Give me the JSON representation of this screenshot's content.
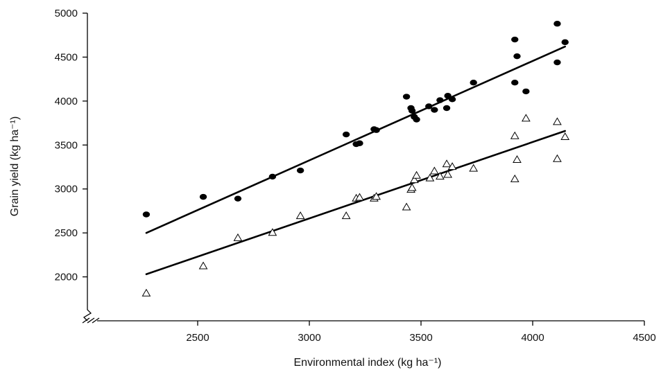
{
  "chart_data": {
    "type": "scatter",
    "xlabel": "Environmental index (kg ha⁻¹)",
    "ylabel": "Grain yield (kg ha⁻¹)",
    "xlim": [
      2000,
      4500
    ],
    "ylim": [
      1500,
      5000
    ],
    "x_ticks": [
      2500,
      3000,
      3500,
      4000,
      4500
    ],
    "y_ticks": [
      2000,
      2500,
      3000,
      3500,
      4000,
      4500,
      5000
    ],
    "axis_break": true,
    "grid": false,
    "series": [
      {
        "marker": "filled-circle",
        "color": "#000000",
        "points": [
          [
            2270,
            2710
          ],
          [
            2525,
            2910
          ],
          [
            2680,
            2890
          ],
          [
            2835,
            3140
          ],
          [
            2960,
            3210
          ],
          [
            3165,
            3620
          ],
          [
            3210,
            3510
          ],
          [
            3225,
            3520
          ],
          [
            3290,
            3680
          ],
          [
            3300,
            3670
          ],
          [
            3435,
            4050
          ],
          [
            3455,
            3920
          ],
          [
            3460,
            3890
          ],
          [
            3470,
            3820
          ],
          [
            3480,
            3790
          ],
          [
            3535,
            3940
          ],
          [
            3560,
            3900
          ],
          [
            3585,
            4010
          ],
          [
            3615,
            3920
          ],
          [
            3620,
            4060
          ],
          [
            3640,
            4020
          ],
          [
            3735,
            4210
          ],
          [
            3920,
            4700
          ],
          [
            3920,
            4210
          ],
          [
            3930,
            4510
          ],
          [
            3970,
            4110
          ],
          [
            4110,
            4880
          ],
          [
            4110,
            4440
          ],
          [
            4145,
            4670
          ]
        ],
        "fit": {
          "x": [
            2270,
            4145
          ],
          "y": [
            2500,
            4620
          ]
        }
      },
      {
        "marker": "open-triangle",
        "color": "#000000",
        "points": [
          [
            2270,
            1810
          ],
          [
            2525,
            2120
          ],
          [
            2680,
            2440
          ],
          [
            2835,
            2500
          ],
          [
            2960,
            2690
          ],
          [
            3165,
            2690
          ],
          [
            3210,
            2890
          ],
          [
            3225,
            2900
          ],
          [
            3290,
            2890
          ],
          [
            3300,
            2910
          ],
          [
            3435,
            2790
          ],
          [
            3455,
            2990
          ],
          [
            3460,
            3010
          ],
          [
            3470,
            3100
          ],
          [
            3480,
            3150
          ],
          [
            3540,
            3120
          ],
          [
            3560,
            3200
          ],
          [
            3585,
            3140
          ],
          [
            3615,
            3280
          ],
          [
            3620,
            3160
          ],
          [
            3640,
            3250
          ],
          [
            3735,
            3230
          ],
          [
            3920,
            3600
          ],
          [
            3920,
            3110
          ],
          [
            3930,
            3330
          ],
          [
            3970,
            3800
          ],
          [
            4110,
            3760
          ],
          [
            4110,
            3340
          ],
          [
            4145,
            3590
          ]
        ],
        "fit": {
          "x": [
            2270,
            4145
          ],
          "y": [
            2030,
            3660
          ]
        }
      }
    ]
  }
}
